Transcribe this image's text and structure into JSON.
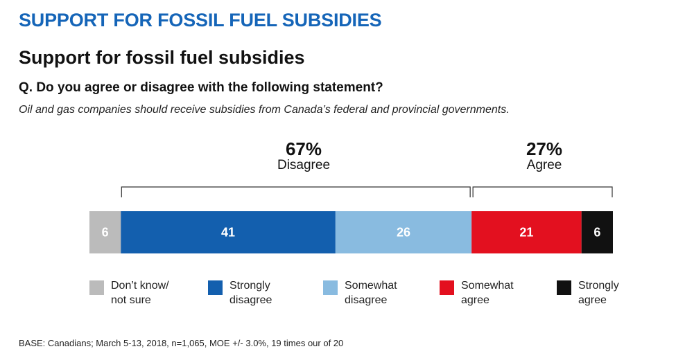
{
  "banner": "SUPPORT FOR FOSSIL FUEL SUBSIDIES",
  "title": "Support for fossil fuel subsidies",
  "question": "Q. Do you agree or disagree with the following statement?",
  "statement": "Oil and gas companies should receive subsidies from Canada’s federal and provincial governments.",
  "groups": {
    "disagree": {
      "pct": "67%",
      "label": "Disagree"
    },
    "agree": {
      "pct": "27%",
      "label": "Agree"
    }
  },
  "legend": [
    {
      "line1": "Don’t know/",
      "line2": "not sure",
      "color": "#bbbbbb"
    },
    {
      "line1": "Strongly",
      "line2": "disagree",
      "color": "#135fae"
    },
    {
      "line1": "Somewhat",
      "line2": "disagree",
      "color": "#89bbe0"
    },
    {
      "line1": "Somewhat",
      "line2": "agree",
      "color": "#e3101f"
    },
    {
      "line1": "Strongly",
      "line2": "agree",
      "color": "#111111"
    }
  ],
  "chart_data": {
    "type": "bar",
    "orientation": "horizontal-stacked",
    "categories": [
      "Don’t know/not sure",
      "Strongly disagree",
      "Somewhat disagree",
      "Somewhat agree",
      "Strongly agree"
    ],
    "values": [
      6,
      41,
      26,
      21,
      6
    ],
    "labels": [
      "6",
      "41",
      "26",
      "21",
      "6"
    ],
    "colors": [
      "#bbbbbb",
      "#135fae",
      "#89bbe0",
      "#e3101f",
      "#111111"
    ],
    "label_colors": [
      "#ffffff",
      "#ffffff",
      "#ffffff",
      "#ffffff",
      "#ffffff"
    ]
  },
  "base": "BASE: Canadians; March 5-13, 2018, n=1,065, MOE +/- 3.0%, 19 times our of 20"
}
